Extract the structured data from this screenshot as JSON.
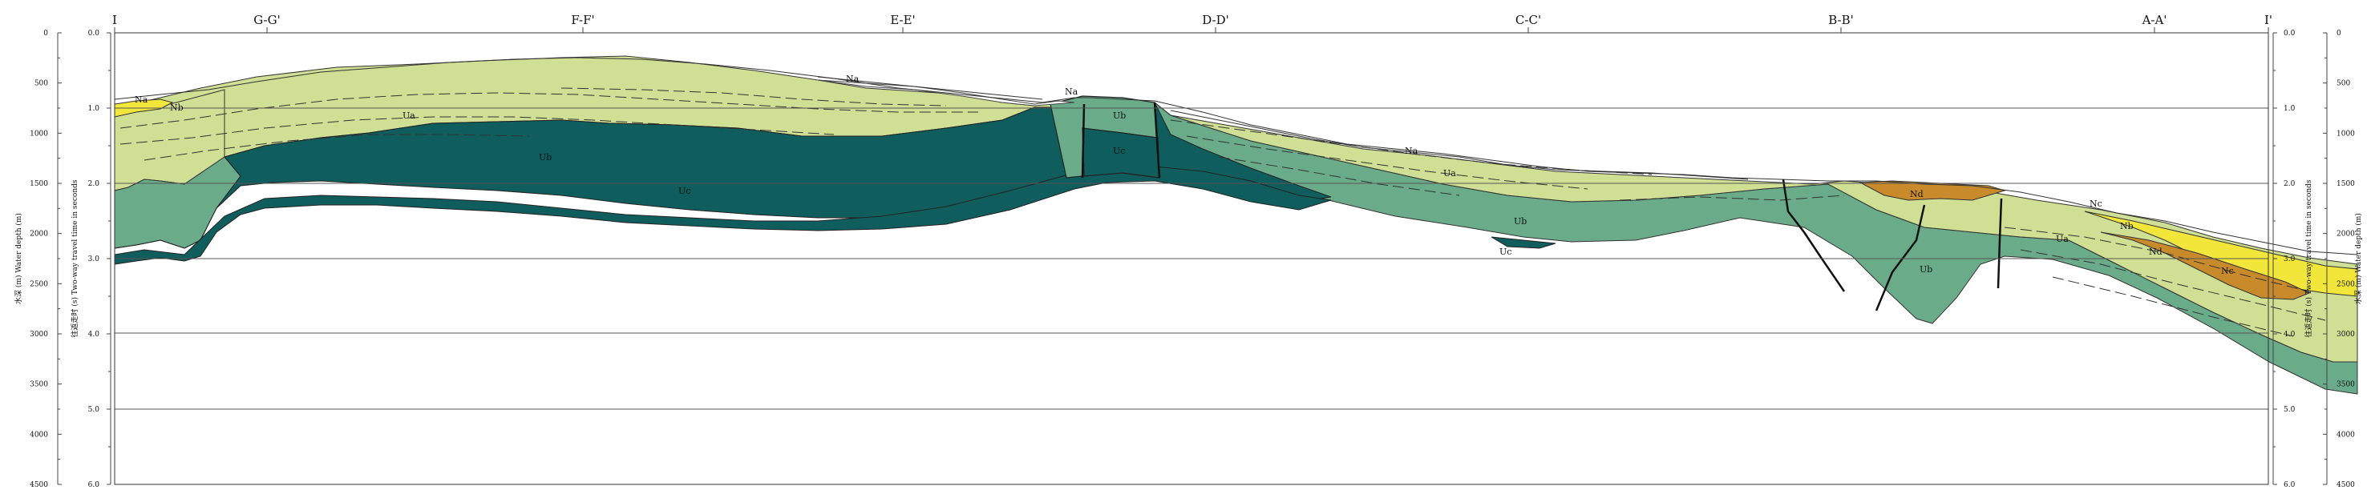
{
  "profile_labels": [
    "I",
    "G-G'",
    "F-F'",
    "E-E'",
    "D-D'",
    "C-C'",
    "B-B'",
    "A-A'",
    "I'"
  ],
  "left_axes": {
    "depth_title": "水深 (m)  Water depth (m)",
    "time_title": "往返走时 (s)  Two-way travel time in seconds",
    "depth_ticks": [
      "0",
      "500",
      "1000",
      "1500",
      "2000",
      "2500",
      "3000",
      "3500",
      "4000",
      "4500"
    ],
    "time_ticks": [
      "0.0",
      "1.0",
      "2.0",
      "3.0",
      "4.0",
      "5.0",
      "6.0"
    ]
  },
  "right_axes": {
    "depth_title": "水深 (m)  Water depth (m)",
    "time_title": "往返走时 (s)  Two-way travel time in seconds",
    "depth_ticks": [
      "0",
      "500",
      "1000",
      "1500",
      "2000",
      "2500",
      "3000",
      "3500",
      "4000",
      "4500"
    ],
    "time_ticks": [
      "0.0",
      "1.0",
      "2.0",
      "3.0",
      "4.0",
      "5.0",
      "6.0"
    ]
  },
  "unit_labels": {
    "na_left": "Na",
    "nb_left": "Nb",
    "ua_left": "Ua",
    "ub_left": "Ub",
    "uc_left": "Uc",
    "na_mid": "Na",
    "na_top": "Na",
    "ub_mid": "Ub",
    "uc_mid": "Uc",
    "na_cc": "Na",
    "ua_cc": "Ua",
    "ub_cc": "Ub",
    "uc_cc": "Uc",
    "nd_bb": "Nd",
    "ua_bb": "Ua",
    "ub_bb": "Ub",
    "nc_aa": "Nc",
    "nb_aa": "Nb",
    "nd_aa": "Nd",
    "ne_aa": "Nc"
  },
  "colors": {
    "Ua": "#cfdf94",
    "Ub": "#6aab8a",
    "Uc": "#0f5d5d",
    "Nb": "#f2e63a",
    "Nd": "#c98a2c",
    "water_strata": "#ffffff"
  }
}
